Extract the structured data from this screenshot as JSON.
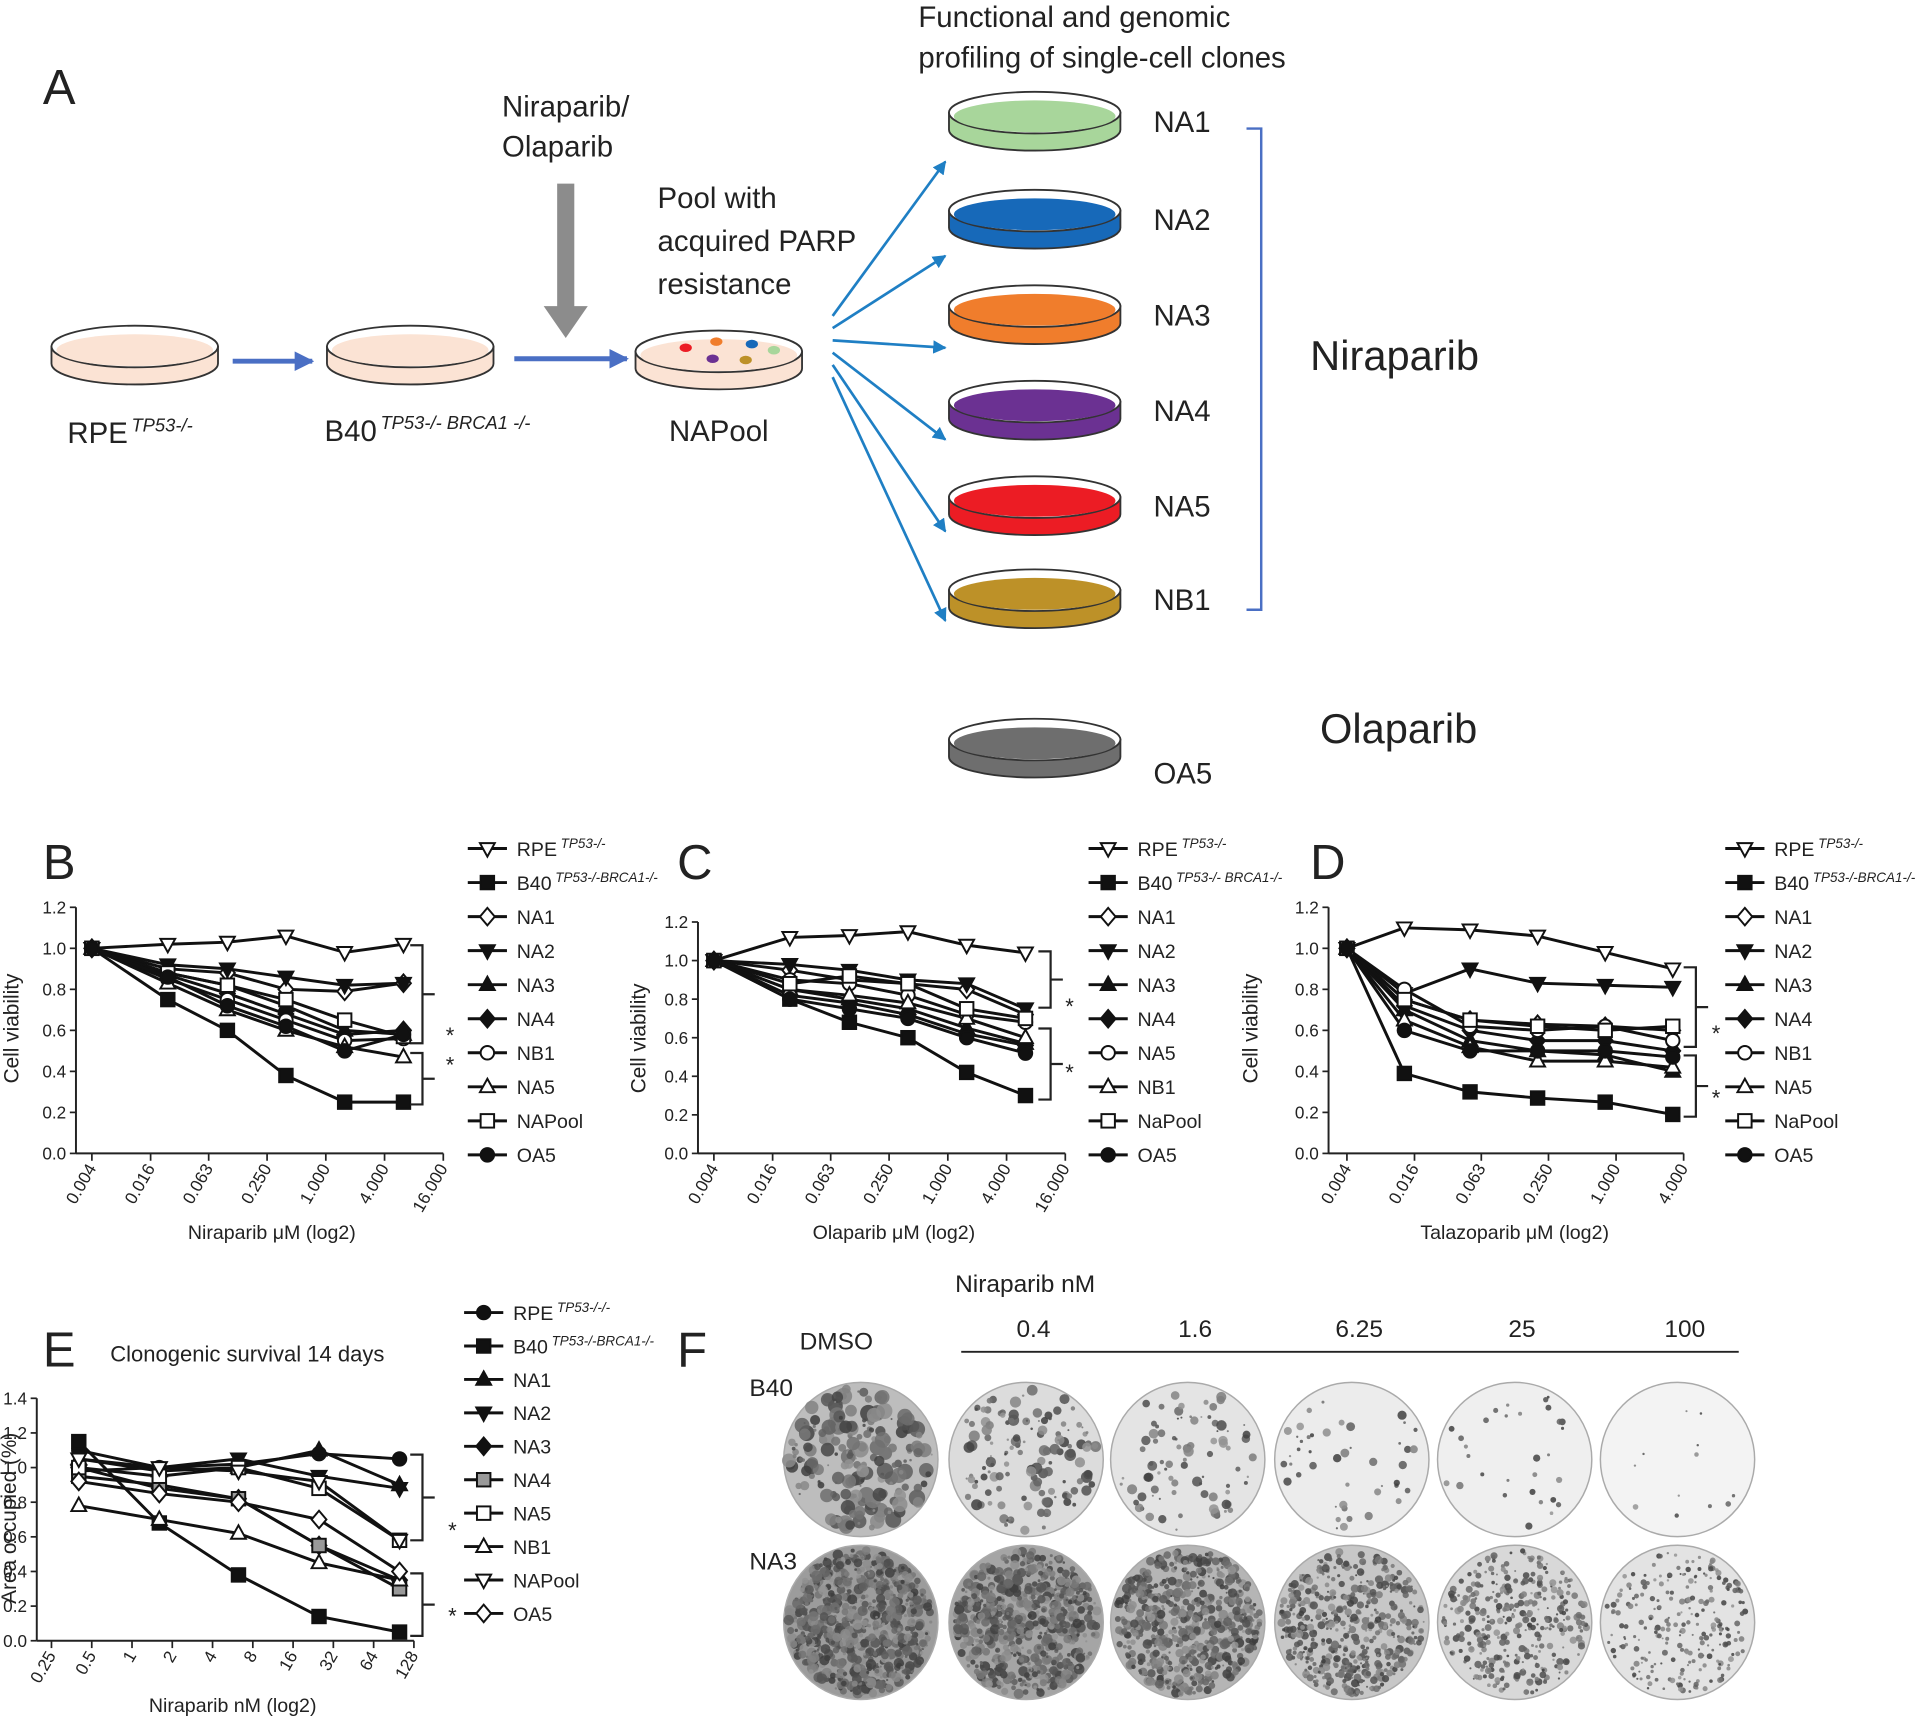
{
  "panel_a": {
    "label": "A",
    "dish_color": "#fbe3d4",
    "sources": [
      {
        "name": "RPE",
        "sup": "TP53-/-"
      },
      {
        "name": "B40",
        "sup": "TP53-/- BRCA1 -/-"
      }
    ],
    "treatment": [
      "Niraparib/",
      "Olaparib"
    ],
    "pool_note": [
      "Pool with",
      "acquired PARP",
      "resistance"
    ],
    "pool": "NAPool",
    "profiling": [
      "Functional  and genomic",
      "profiling of single-cell clones"
    ],
    "clones": [
      {
        "label": "NA1",
        "color": "#a8d69b"
      },
      {
        "label": "NA2",
        "color": "#1769b9"
      },
      {
        "label": "NA3",
        "color": "#f07d2c"
      },
      {
        "label": "NA4",
        "color": "#6b3192"
      },
      {
        "label": "NA5",
        "color": "#ec1c24"
      },
      {
        "label": "NB1",
        "color": "#bd9128"
      }
    ],
    "groups": [
      "Niraparib",
      "Olaparib"
    ],
    "olaparib_clone": {
      "label": "OA5",
      "color": "#6e6e6e"
    }
  },
  "chart_data": [
    {
      "panel": "B",
      "type": "line",
      "xscale": "log2",
      "y_label": "Cell viability",
      "x_label": "Niraparib μM (log2)",
      "x": [
        0.004,
        0.024,
        0.098,
        0.39,
        1.56,
        6.25
      ],
      "xlim": [
        0.004,
        16
      ],
      "xticks": [
        0.004,
        0.016,
        0.063,
        {
          "value": 0.25,
          "label": "0.250"
        },
        {
          "value": 1,
          "label": "1.000"
        },
        {
          "value": 4,
          "label": "4.000"
        },
        {
          "value": 16,
          "label": "16.000"
        }
      ],
      "ylim": [
        0,
        1.2
      ],
      "yticks": [
        {
          "value": 0,
          "label": "0.0"
        },
        0.2,
        0.4,
        0.6,
        0.8,
        {
          "value": 1,
          "label": "1.0"
        },
        1.2
      ],
      "annotations": [
        "*",
        "*"
      ],
      "series": [
        {
          "name": "RPE",
          "name_sup": "TP53-/-",
          "marker": "triangle-down-open",
          "color": "#111",
          "values": [
            1.0,
            1.02,
            1.03,
            1.06,
            0.98,
            1.02
          ]
        },
        {
          "name": "B40",
          "name_sup": "TP53-/-BRCA1-/-",
          "marker": "square",
          "color": "#111",
          "values": [
            1.0,
            0.75,
            0.6,
            0.38,
            0.25,
            0.25
          ]
        },
        {
          "name": "NA1",
          "marker": "diamond-open",
          "color": "#111",
          "values": [
            1.0,
            0.9,
            0.88,
            0.8,
            0.79,
            0.83
          ]
        },
        {
          "name": "NA2",
          "marker": "triangle-down",
          "color": "#111",
          "values": [
            1.0,
            0.92,
            0.9,
            0.86,
            0.82,
            0.83
          ]
        },
        {
          "name": "NA3",
          "marker": "triangle",
          "color": "#111",
          "values": [
            1.0,
            0.88,
            0.82,
            0.72,
            0.6,
            0.58
          ]
        },
        {
          "name": "NA4",
          "marker": "diamond",
          "color": "#111",
          "values": [
            1.0,
            0.87,
            0.78,
            0.68,
            0.58,
            0.6
          ]
        },
        {
          "name": "NB1",
          "marker": "circle-open",
          "color": "#111",
          "values": [
            1.0,
            0.85,
            0.75,
            0.65,
            0.55,
            0.56
          ]
        },
        {
          "name": "NA5",
          "marker": "triangle-open",
          "color": "#111",
          "values": [
            1.0,
            0.83,
            0.7,
            0.6,
            0.52,
            0.47
          ]
        },
        {
          "name": "NAPool",
          "marker": "square-open",
          "color": "#111",
          "values": [
            1.0,
            0.88,
            0.82,
            0.75,
            0.65,
            0.57
          ]
        },
        {
          "name": "OA5",
          "marker": "circle",
          "color": "#111",
          "values": [
            1.0,
            0.86,
            0.72,
            0.62,
            0.5,
            0.58
          ]
        }
      ]
    },
    {
      "panel": "C",
      "type": "line",
      "xscale": "log2",
      "y_label": "Cell viability",
      "x_label": "Olaparib μM (log2)",
      "x": [
        0.004,
        0.024,
        0.098,
        0.39,
        1.56,
        6.25
      ],
      "xlim": [
        0.004,
        16
      ],
      "xticks": [
        0.004,
        0.016,
        0.063,
        {
          "value": 0.25,
          "label": "0.250"
        },
        {
          "value": 1,
          "label": "1.000"
        },
        {
          "value": 4,
          "label": "4.000"
        },
        {
          "value": 16,
          "label": "16.000"
        }
      ],
      "ylim": [
        0,
        1.2
      ],
      "yticks": [
        {
          "value": 0,
          "label": "0.0"
        },
        0.2,
        0.4,
        0.6,
        0.8,
        {
          "value": 1,
          "label": "1.0"
        },
        1.2
      ],
      "annotations": [
        "*",
        "*"
      ],
      "series": [
        {
          "name": "RPE",
          "name_sup": "TP53-/-",
          "marker": "triangle-down-open",
          "color": "#111",
          "values": [
            1.0,
            1.12,
            1.13,
            1.15,
            1.08,
            1.04
          ]
        },
        {
          "name": "B40",
          "name_sup": "TP53-/- BRCA1-/-",
          "marker": "square",
          "color": "#111",
          "values": [
            1.0,
            0.8,
            0.68,
            0.6,
            0.42,
            0.3
          ]
        },
        {
          "name": "NA1",
          "marker": "diamond-open",
          "color": "#111",
          "values": [
            1.0,
            0.95,
            0.9,
            0.88,
            0.85,
            0.72
          ]
        },
        {
          "name": "NA2",
          "marker": "triangle-down",
          "color": "#111",
          "values": [
            1.0,
            0.98,
            0.95,
            0.9,
            0.88,
            0.75
          ]
        },
        {
          "name": "NA3",
          "marker": "triangle",
          "color": "#111",
          "values": [
            1.0,
            0.85,
            0.8,
            0.75,
            0.65,
            0.57
          ]
        },
        {
          "name": "NA4",
          "marker": "diamond",
          "color": "#111",
          "values": [
            1.0,
            0.82,
            0.78,
            0.72,
            0.62,
            0.56
          ]
        },
        {
          "name": "NA5",
          "marker": "circle-open",
          "color": "#111",
          "values": [
            1.0,
            0.9,
            0.88,
            0.82,
            0.72,
            0.68
          ]
        },
        {
          "name": "NB1",
          "marker": "triangle-open",
          "color": "#111",
          "values": [
            1.0,
            0.85,
            0.82,
            0.78,
            0.7,
            0.6
          ]
        },
        {
          "name": "NaPool",
          "marker": "square-open",
          "color": "#111",
          "values": [
            1.0,
            0.88,
            0.92,
            0.88,
            0.75,
            0.7
          ]
        },
        {
          "name": "OA5",
          "marker": "circle",
          "color": "#111",
          "values": [
            1.0,
            0.8,
            0.75,
            0.7,
            0.6,
            0.52
          ]
        }
      ]
    },
    {
      "panel": "D",
      "type": "line",
      "xscale": "log2",
      "y_label": "Cell viability",
      "x_label": "Talazoparib μM (log2)",
      "x": [
        0.004,
        0.013,
        0.05,
        0.2,
        0.8,
        3.2
      ],
      "xlim": [
        0.004,
        4
      ],
      "xticks": [
        0.004,
        0.016,
        0.063,
        {
          "value": 0.25,
          "label": "0.250"
        },
        {
          "value": 1,
          "label": "1.000"
        },
        {
          "value": 4,
          "label": "4.000"
        }
      ],
      "ylim": [
        0,
        1.2
      ],
      "yticks": [
        {
          "value": 0,
          "label": "0.0"
        },
        0.2,
        0.4,
        0.6,
        0.8,
        {
          "value": 1,
          "label": "1.0"
        },
        1.2
      ],
      "annotations": [
        "*",
        "*"
      ],
      "series": [
        {
          "name": "RPE",
          "name_sup": "TP53-/-",
          "marker": "triangle-down-open",
          "color": "#111",
          "values": [
            1.0,
            1.1,
            1.09,
            1.06,
            0.98,
            0.9
          ]
        },
        {
          "name": "B40",
          "name_sup": "TP53-/-BRCA1-/-",
          "marker": "square",
          "color": "#111",
          "values": [
            1.0,
            0.39,
            0.3,
            0.27,
            0.25,
            0.19
          ]
        },
        {
          "name": "NA1",
          "marker": "diamond-open",
          "color": "#111",
          "values": [
            1.0,
            0.75,
            0.65,
            0.63,
            0.62,
            0.6
          ]
        },
        {
          "name": "NA2",
          "marker": "triangle-down",
          "color": "#111",
          "values": [
            1.0,
            0.78,
            0.9,
            0.83,
            0.82,
            0.81
          ]
        },
        {
          "name": "NA3",
          "marker": "triangle",
          "color": "#111",
          "values": [
            1.0,
            0.7,
            0.55,
            0.5,
            0.48,
            0.4
          ]
        },
        {
          "name": "NA4",
          "marker": "diamond",
          "color": "#111",
          "values": [
            1.0,
            0.72,
            0.6,
            0.55,
            0.55,
            0.5
          ]
        },
        {
          "name": "NB1",
          "marker": "circle-open",
          "color": "#111",
          "values": [
            1.0,
            0.8,
            0.62,
            0.6,
            0.62,
            0.55
          ]
        },
        {
          "name": "NA5",
          "marker": "triangle-open",
          "color": "#111",
          "values": [
            1.0,
            0.65,
            0.52,
            0.45,
            0.45,
            0.42
          ]
        },
        {
          "name": "NaPool",
          "marker": "square-open",
          "color": "#111",
          "values": [
            1.0,
            0.75,
            0.65,
            0.62,
            0.6,
            0.62
          ]
        },
        {
          "name": "OA5",
          "marker": "circle",
          "color": "#111",
          "values": [
            1.0,
            0.6,
            0.5,
            0.5,
            0.5,
            0.47
          ]
        }
      ]
    },
    {
      "panel": "E",
      "type": "line",
      "xscale": "log2",
      "title": "Clonogenic survival 14 days",
      "y_label": "Area occupied (%)",
      "x_label": "Niraparib nM (log2)",
      "x": [
        0.4,
        1.6,
        6.25,
        25,
        100
      ],
      "xlim": [
        0.25,
        128
      ],
      "xticks": [
        0.25,
        0.5,
        1,
        2,
        4,
        8,
        16,
        32,
        64,
        128
      ],
      "ylim": [
        0,
        1.4
      ],
      "yticks": [
        {
          "value": 0,
          "label": "0.0"
        },
        0.2,
        0.4,
        0.6,
        0.8,
        {
          "value": 1,
          "label": "1.0"
        },
        1.2,
        1.4
      ],
      "annotations": [
        "*",
        "*"
      ],
      "series": [
        {
          "name": "RPE",
          "name_sup": "TP53-/-/-",
          "marker": "circle",
          "color": "#111",
          "values": [
            1.1,
            1.0,
            1.02,
            1.08,
            1.05
          ]
        },
        {
          "name": "B40",
          "name_sup": "TP53-/-BRCA1-/-",
          "marker": "square",
          "color": "#111",
          "values": [
            1.15,
            0.68,
            0.38,
            0.14,
            0.05
          ]
        },
        {
          "name": "NA1",
          "marker": "triangle",
          "color": "#111",
          "values": [
            1.05,
            0.98,
            1.0,
            1.1,
            0.9
          ]
        },
        {
          "name": "NA2",
          "marker": "triangle-down",
          "color": "#111",
          "values": [
            0.98,
            1.0,
            1.05,
            0.95,
            0.88
          ]
        },
        {
          "name": "NA3",
          "marker": "diamond",
          "color": "#111",
          "values": [
            1.0,
            0.88,
            0.82,
            0.55,
            0.35
          ]
        },
        {
          "name": "NA4",
          "marker": "square-gray",
          "color": "#111",
          "values": [
            0.95,
            0.9,
            0.82,
            0.55,
            0.3
          ]
        },
        {
          "name": "NA5",
          "marker": "square-open",
          "color": "#111",
          "values": [
            1.0,
            0.95,
            1.0,
            0.88,
            0.58
          ]
        },
        {
          "name": "NB1",
          "marker": "triangle-open",
          "color": "#111",
          "values": [
            0.78,
            0.7,
            0.62,
            0.45,
            0.35
          ]
        },
        {
          "name": "NAPool",
          "marker": "triangle-down-open",
          "color": "#111",
          "values": [
            1.05,
            1.0,
            0.98,
            0.92,
            0.58
          ]
        },
        {
          "name": "OA5",
          "marker": "diamond-open",
          "color": "#111",
          "values": [
            0.92,
            0.85,
            0.8,
            0.7,
            0.4
          ]
        }
      ]
    }
  ],
  "panel_f": {
    "label": "F",
    "title": "Niraparib nM",
    "columns": [
      "DMSO",
      "0.4",
      "1.6",
      "6.25",
      "25",
      "100"
    ],
    "rows": [
      "B40",
      "NA3"
    ]
  }
}
